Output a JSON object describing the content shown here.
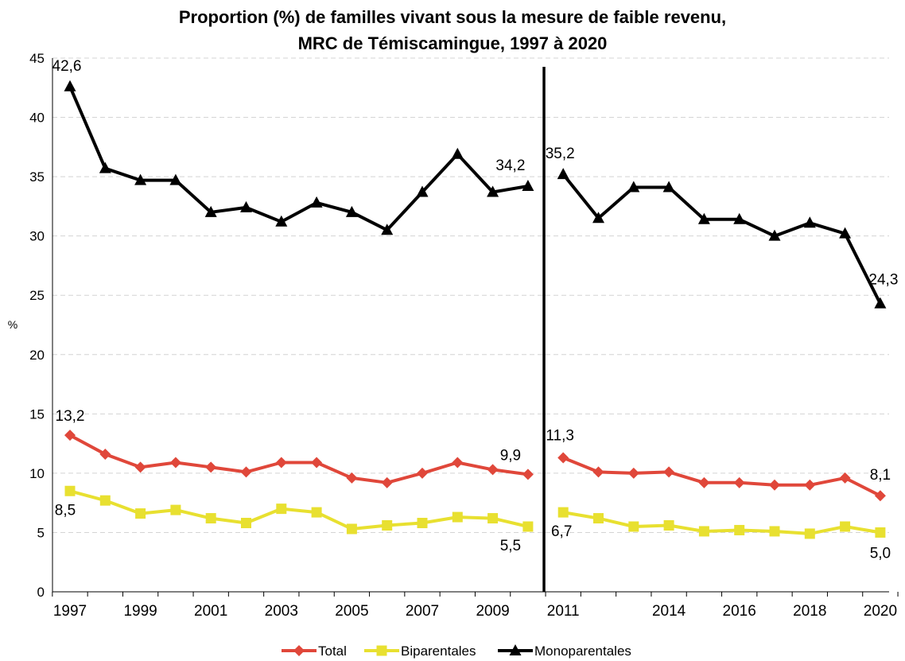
{
  "chart_data": {
    "type": "line",
    "title": [
      "Proportion (%) de familles vivant sous la mesure de faible revenu,",
      "MRC de Témiscamingue, 1997 à 2020"
    ],
    "ylabel": "%",
    "ylim": [
      0,
      45
    ],
    "yticks": [
      0,
      5,
      10,
      15,
      20,
      25,
      30,
      35,
      40,
      45
    ],
    "grid": true,
    "legend_position": "bottom",
    "x": [
      1997,
      1998,
      1999,
      2000,
      2001,
      2002,
      2003,
      2004,
      2005,
      2006,
      2007,
      2008,
      2009,
      2010,
      2011,
      2012,
      2013,
      2014,
      2015,
      2016,
      2017,
      2018,
      2019,
      2020
    ],
    "xtick_labels": [
      "1997",
      "1999",
      "2001",
      "2003",
      "2005",
      "2007",
      "2009",
      "2011",
      "2014",
      "2016",
      "2018",
      "2020"
    ],
    "break_after": 2010,
    "series": [
      {
        "name": "Total",
        "color": "#e0473a",
        "marker": "diamond",
        "values": [
          13.2,
          11.6,
          10.5,
          10.9,
          10.5,
          10.1,
          10.9,
          10.9,
          9.6,
          9.2,
          10.0,
          10.9,
          10.3,
          9.9,
          11.3,
          10.1,
          10.0,
          10.1,
          9.2,
          9.2,
          9.0,
          9.0,
          9.6,
          8.1
        ],
        "labels": {
          "1997": "13,2",
          "2010": "9,9",
          "2011": "11,3",
          "2020": "8,1"
        }
      },
      {
        "name": "Biparentales",
        "color": "#e8e030",
        "marker": "square",
        "values": [
          8.5,
          7.7,
          6.6,
          6.9,
          6.2,
          5.8,
          7.0,
          6.7,
          5.3,
          5.6,
          5.8,
          6.3,
          6.2,
          5.5,
          6.7,
          6.2,
          5.5,
          5.6,
          5.1,
          5.2,
          5.1,
          4.9,
          5.5,
          5.0
        ],
        "labels": {
          "1997": "8,5",
          "2010": "5,5",
          "2011": "6,7",
          "2020": "5,0"
        }
      },
      {
        "name": "Monoparentales",
        "color": "#000000",
        "marker": "triangle",
        "values": [
          42.6,
          35.7,
          34.7,
          34.7,
          32.0,
          32.4,
          31.2,
          32.8,
          32.0,
          30.5,
          33.7,
          36.9,
          33.7,
          34.2,
          35.2,
          31.5,
          34.1,
          34.1,
          31.4,
          31.4,
          30.0,
          31.1,
          30.2,
          24.3
        ],
        "labels": {
          "1997": "42,6",
          "2010": "34,2",
          "2011": "35,2",
          "2020": "24,3"
        }
      }
    ]
  }
}
